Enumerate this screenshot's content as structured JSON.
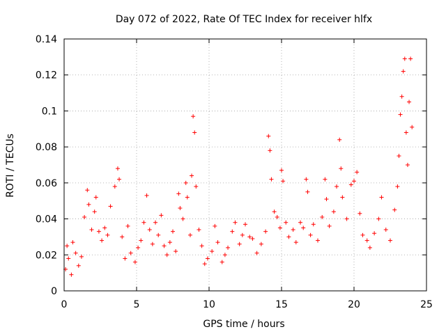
{
  "chart_data": {
    "type": "scatter",
    "title": "Day 072 of 2022, Rate Of TEC Index for receiver hlfx",
    "xlabel": "GPS time / hours",
    "ylabel": "ROTI / TECUs",
    "xlim": [
      0,
      25
    ],
    "ylim": [
      0,
      0.14
    ],
    "xticks": [
      0,
      5,
      10,
      15,
      20,
      25
    ],
    "xtick_labels": [
      "0",
      "5",
      "10",
      "15",
      "20",
      "25"
    ],
    "yticks": [
      0,
      0.02,
      0.04,
      0.06,
      0.08,
      0.1,
      0.12,
      0.14
    ],
    "ytick_labels": [
      "0",
      "0.02",
      "0.04",
      "0.06",
      "0.08",
      "0.1",
      "0.12",
      "0.14"
    ],
    "grid": true,
    "marker": "+",
    "marker_color": "#ff0000",
    "series": [
      {
        "name": "ROTI",
        "points": [
          [
            0.1,
            0.012
          ],
          [
            0.2,
            0.025
          ],
          [
            0.3,
            0.018
          ],
          [
            0.5,
            0.009
          ],
          [
            0.6,
            0.027
          ],
          [
            0.8,
            0.021
          ],
          [
            1.0,
            0.014
          ],
          [
            1.2,
            0.019
          ],
          [
            1.4,
            0.041
          ],
          [
            1.6,
            0.056
          ],
          [
            1.7,
            0.048
          ],
          [
            1.9,
            0.034
          ],
          [
            2.1,
            0.044
          ],
          [
            2.2,
            0.052
          ],
          [
            2.4,
            0.033
          ],
          [
            2.6,
            0.028
          ],
          [
            2.8,
            0.035
          ],
          [
            3.0,
            0.031
          ],
          [
            3.2,
            0.047
          ],
          [
            3.5,
            0.058
          ],
          [
            3.7,
            0.068
          ],
          [
            3.8,
            0.062
          ],
          [
            4.0,
            0.03
          ],
          [
            4.2,
            0.018
          ],
          [
            4.4,
            0.036
          ],
          [
            4.6,
            0.021
          ],
          [
            4.9,
            0.016
          ],
          [
            5.1,
            0.024
          ],
          [
            5.3,
            0.028
          ],
          [
            5.5,
            0.038
          ],
          [
            5.7,
            0.053
          ],
          [
            5.9,
            0.034
          ],
          [
            6.1,
            0.026
          ],
          [
            6.3,
            0.038
          ],
          [
            6.5,
            0.031
          ],
          [
            6.7,
            0.042
          ],
          [
            6.9,
            0.025
          ],
          [
            7.1,
            0.02
          ],
          [
            7.3,
            0.027
          ],
          [
            7.5,
            0.033
          ],
          [
            7.7,
            0.022
          ],
          [
            7.9,
            0.054
          ],
          [
            8.0,
            0.046
          ],
          [
            8.2,
            0.04
          ],
          [
            8.4,
            0.06
          ],
          [
            8.5,
            0.052
          ],
          [
            8.7,
            0.031
          ],
          [
            8.8,
            0.064
          ],
          [
            8.9,
            0.097
          ],
          [
            9.0,
            0.088
          ],
          [
            9.1,
            0.058
          ],
          [
            9.3,
            0.034
          ],
          [
            9.5,
            0.025
          ],
          [
            9.7,
            0.015
          ],
          [
            9.9,
            0.018
          ],
          [
            10.2,
            0.022
          ],
          [
            10.4,
            0.036
          ],
          [
            10.6,
            0.027
          ],
          [
            10.9,
            0.016
          ],
          [
            11.1,
            0.02
          ],
          [
            11.3,
            0.024
          ],
          [
            11.6,
            0.033
          ],
          [
            11.8,
            0.038
          ],
          [
            12.1,
            0.026
          ],
          [
            12.3,
            0.031
          ],
          [
            12.5,
            0.037
          ],
          [
            12.8,
            0.03
          ],
          [
            13.0,
            0.029
          ],
          [
            13.3,
            0.021
          ],
          [
            13.6,
            0.026
          ],
          [
            13.9,
            0.033
          ],
          [
            14.1,
            0.086
          ],
          [
            14.2,
            0.078
          ],
          [
            14.3,
            0.062
          ],
          [
            14.5,
            0.044
          ],
          [
            14.7,
            0.041
          ],
          [
            14.9,
            0.035
          ],
          [
            15.0,
            0.067
          ],
          [
            15.1,
            0.061
          ],
          [
            15.3,
            0.038
          ],
          [
            15.5,
            0.03
          ],
          [
            15.8,
            0.034
          ],
          [
            16.0,
            0.027
          ],
          [
            16.3,
            0.038
          ],
          [
            16.5,
            0.035
          ],
          [
            16.7,
            0.062
          ],
          [
            16.8,
            0.055
          ],
          [
            17.0,
            0.031
          ],
          [
            17.2,
            0.037
          ],
          [
            17.5,
            0.028
          ],
          [
            17.8,
            0.041
          ],
          [
            18.0,
            0.062
          ],
          [
            18.1,
            0.051
          ],
          [
            18.3,
            0.036
          ],
          [
            18.6,
            0.044
          ],
          [
            18.8,
            0.058
          ],
          [
            19.0,
            0.084
          ],
          [
            19.1,
            0.068
          ],
          [
            19.2,
            0.052
          ],
          [
            19.5,
            0.04
          ],
          [
            19.8,
            0.059
          ],
          [
            20.0,
            0.061
          ],
          [
            20.2,
            0.066
          ],
          [
            20.4,
            0.043
          ],
          [
            20.6,
            0.031
          ],
          [
            20.9,
            0.028
          ],
          [
            21.1,
            0.024
          ],
          [
            21.4,
            0.032
          ],
          [
            21.7,
            0.04
          ],
          [
            21.9,
            0.052
          ],
          [
            22.2,
            0.034
          ],
          [
            22.5,
            0.028
          ],
          [
            22.8,
            0.045
          ],
          [
            23.0,
            0.058
          ],
          [
            23.1,
            0.075
          ],
          [
            23.2,
            0.098
          ],
          [
            23.3,
            0.108
          ],
          [
            23.4,
            0.122
          ],
          [
            23.5,
            0.129
          ],
          [
            23.6,
            0.088
          ],
          [
            23.7,
            0.07
          ],
          [
            23.8,
            0.105
          ],
          [
            23.9,
            0.129
          ],
          [
            24.0,
            0.091
          ]
        ]
      }
    ]
  }
}
